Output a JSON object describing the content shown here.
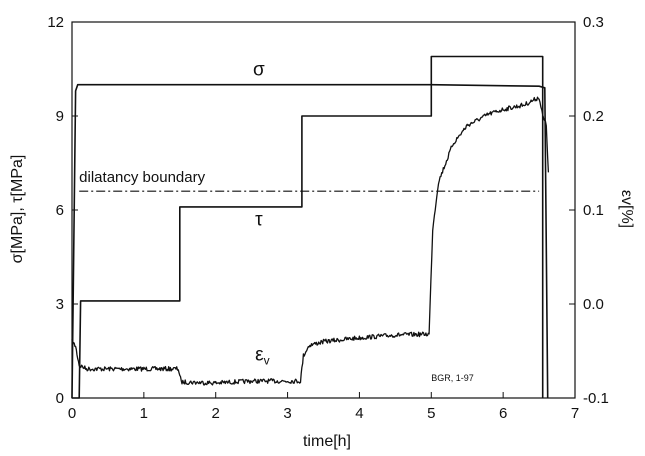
{
  "chart_data": {
    "type": "line",
    "xlabel": "time[h]",
    "ylabel_left": "σ[MPa], τ[MPa]",
    "ylabel_right": "εv[%]",
    "xlim": [
      0,
      7
    ],
    "ylim_left": [
      0,
      12
    ],
    "ylim_right": [
      -0.1,
      0.3
    ],
    "x_ticks": [
      "0",
      "1",
      "2",
      "3",
      "4",
      "5",
      "6",
      "7"
    ],
    "y_ticks_left": [
      "0",
      "3",
      "6",
      "9",
      "12"
    ],
    "y_ticks_right": [
      "-0.1",
      "0.0",
      "0.1",
      "0.2",
      "0.3"
    ],
    "grid": false,
    "annotations": [
      {
        "text": "σ",
        "x": 2.6,
        "y": 10.3,
        "axis": "left",
        "style": "greek"
      },
      {
        "text": "τ",
        "x": 2.6,
        "y": 5.5,
        "axis": "left",
        "style": "greek"
      },
      {
        "text": "ε",
        "sub": "v",
        "x": 2.65,
        "y": 1.2,
        "axis": "left",
        "style": "greek"
      },
      {
        "text": "dilatancy boundary",
        "x": 0.1,
        "y": 6.9,
        "axis": "left",
        "style": "normal"
      },
      {
        "text": "BGR, 1-97",
        "x": 5.0,
        "y": 0.55,
        "axis": "left",
        "style": "small"
      }
    ],
    "series": [
      {
        "axis": "left",
        "style": "solid",
        "x": [
          0,
          0.05,
          0.08,
          0.1,
          1.5,
          4.95,
          5.0,
          6.5,
          6.58,
          6.62
        ],
        "y": [
          0,
          9.8,
          10.0,
          10.0,
          10.0,
          10.0,
          10.0,
          9.95,
          9.9,
          0
        ]
      },
      {
        "axis": "left",
        "style": "solid",
        "x": [
          0,
          0.1,
          0.12,
          1.5,
          1.5,
          3.2,
          3.2,
          5.0,
          5.0,
          6.55,
          6.55
        ],
        "y": [
          0,
          0,
          3.1,
          3.1,
          6.1,
          6.1,
          9.0,
          9.0,
          10.9,
          10.9,
          0
        ]
      },
      {
        "axis": "left",
        "style": "dashdot",
        "x": [
          0.1,
          6.5
        ],
        "y": [
          6.6,
          6.6
        ]
      },
      {
        "axis": "right",
        "style": "noisy",
        "x": [
          0,
          0.05,
          0.1,
          0.2,
          1.0,
          1.48,
          1.52,
          2.0,
          2.5,
          3.18,
          3.22,
          3.3,
          3.5,
          4.0,
          4.5,
          4.97,
          5.02,
          5.1,
          5.3,
          5.5,
          5.8,
          6.0,
          6.3,
          6.5,
          6.55,
          6.6,
          6.63
        ],
        "y": [
          -0.04,
          -0.045,
          -0.065,
          -0.069,
          -0.069,
          -0.069,
          -0.083,
          -0.084,
          -0.082,
          -0.082,
          -0.055,
          -0.044,
          -0.04,
          -0.036,
          -0.033,
          -0.032,
          0.08,
          0.13,
          0.17,
          0.19,
          0.202,
          0.207,
          0.212,
          0.22,
          0.2,
          0.19,
          0.14
        ]
      }
    ]
  }
}
